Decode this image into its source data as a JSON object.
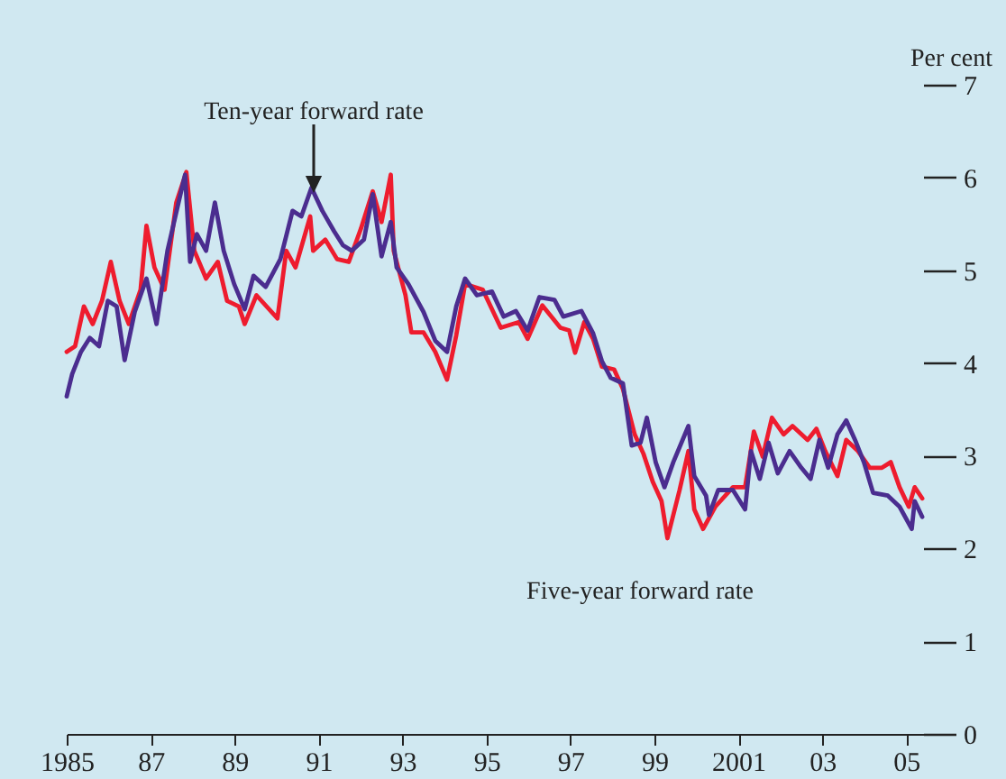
{
  "chart_data": {
    "type": "line",
    "ylabel": "Per cent",
    "xlim": [
      1985,
      2005.4
    ],
    "xticks": [
      1985,
      {
        "value": 1987,
        "label": "87"
      },
      {
        "value": 1989,
        "label": "89"
      },
      {
        "value": 1991,
        "label": "91"
      },
      {
        "value": 1993,
        "label": "93"
      },
      {
        "value": 1995,
        "label": "95"
      },
      {
        "value": 1997,
        "label": "97"
      },
      {
        "value": 1999,
        "label": "99"
      },
      2001,
      {
        "value": 2003,
        "label": "03"
      },
      {
        "value": 2005,
        "label": "05"
      }
    ],
    "ylim": [
      0,
      7
    ],
    "yticks": [
      0,
      1,
      2,
      3,
      4,
      5,
      6,
      7
    ],
    "grid": false,
    "legend": false,
    "annotations": [
      "Ten-year forward rate",
      "Five-year forward rate"
    ],
    "series": [
      {
        "color": "#ee1c2e",
        "x": [
          1985.0,
          1985.2,
          1985.41,
          1985.62,
          1985.84,
          1986.05,
          1986.26,
          1986.48,
          1986.76,
          1986.9,
          1987.09,
          1987.33,
          1987.61,
          1987.85,
          1988.04,
          1988.32,
          1988.6,
          1988.82,
          1989.1,
          1989.24,
          1989.52,
          1990.02,
          1990.23,
          1990.45,
          1990.8,
          1990.87,
          1991.16,
          1991.44,
          1991.72,
          1992.01,
          1992.29,
          1992.5,
          1992.72,
          1992.79,
          1993.07,
          1993.21,
          1993.5,
          1993.78,
          1994.06,
          1994.28,
          1994.49,
          1994.91,
          1995.34,
          1995.77,
          1995.98,
          1996.33,
          1996.76,
          1996.97,
          1997.11,
          1997.33,
          1997.54,
          1997.75,
          1998.04,
          1998.25,
          1998.53,
          1998.74,
          1998.96,
          1999.17,
          1999.31,
          1999.6,
          1999.81,
          1999.95,
          2000.16,
          2000.45,
          2000.87,
          2001.16,
          2001.37,
          2001.58,
          2001.8,
          2002.08,
          2002.29,
          2002.65,
          2002.86,
          2003.07,
          2003.36,
          2003.57,
          2003.85,
          2004.13,
          2004.42,
          2004.63,
          2004.84,
          2005.06,
          2005.2,
          2005.38
        ],
        "values": [
          4.12,
          4.18,
          4.61,
          4.42,
          4.67,
          5.09,
          4.67,
          4.42,
          4.79,
          5.48,
          5.03,
          4.79,
          5.73,
          6.06,
          5.21,
          4.91,
          5.09,
          4.67,
          4.61,
          4.42,
          4.73,
          4.48,
          5.21,
          5.03,
          5.58,
          5.21,
          5.33,
          5.12,
          5.09,
          5.45,
          5.85,
          5.52,
          6.03,
          5.21,
          4.73,
          4.33,
          4.33,
          4.12,
          3.82,
          4.3,
          4.85,
          4.79,
          4.38,
          4.44,
          4.26,
          4.62,
          4.38,
          4.35,
          4.11,
          4.44,
          4.26,
          3.96,
          3.93,
          3.72,
          3.23,
          3.02,
          2.72,
          2.51,
          2.11,
          2.63,
          3.05,
          2.42,
          2.21,
          2.45,
          2.66,
          2.66,
          3.26,
          2.99,
          3.41,
          3.23,
          3.32,
          3.17,
          3.29,
          3.05,
          2.78,
          3.17,
          3.05,
          2.87,
          2.87,
          2.93,
          2.66,
          2.45,
          2.66,
          2.54
        ]
      },
      {
        "color": "#4b2d8f",
        "x": [
          1985.0,
          1985.13,
          1985.34,
          1985.55,
          1985.77,
          1985.98,
          1986.19,
          1986.38,
          1986.62,
          1986.9,
          1987.14,
          1987.4,
          1987.68,
          1987.82,
          1987.94,
          1988.1,
          1988.32,
          1988.53,
          1988.74,
          1988.99,
          1989.24,
          1989.45,
          1989.74,
          1990.09,
          1990.38,
          1990.59,
          1990.83,
          1991.09,
          1991.37,
          1991.58,
          1991.79,
          1992.08,
          1992.29,
          1992.5,
          1992.72,
          1992.86,
          1993.14,
          1993.5,
          1993.78,
          1994.06,
          1994.28,
          1994.49,
          1994.77,
          1995.13,
          1995.41,
          1995.7,
          1995.98,
          1996.26,
          1996.62,
          1996.83,
          1997.26,
          1997.54,
          1997.75,
          1997.96,
          1998.25,
          1998.46,
          1998.67,
          1998.82,
          1999.03,
          1999.24,
          1999.45,
          1999.81,
          1999.95,
          2000.23,
          2000.3,
          2000.52,
          2000.87,
          2001.16,
          2001.3,
          2001.51,
          2001.72,
          2001.94,
          2002.22,
          2002.5,
          2002.72,
          2002.93,
          2003.14,
          2003.36,
          2003.57,
          2003.78,
          2003.99,
          2004.21,
          2004.56,
          2004.84,
          2005.13,
          2005.2,
          2005.38
        ],
        "values": [
          3.64,
          3.88,
          4.12,
          4.27,
          4.18,
          4.67,
          4.61,
          4.03,
          4.55,
          4.91,
          4.42,
          5.21,
          5.76,
          6.03,
          5.09,
          5.39,
          5.21,
          5.73,
          5.21,
          4.85,
          4.58,
          4.94,
          4.82,
          5.12,
          5.64,
          5.58,
          5.89,
          5.64,
          5.42,
          5.27,
          5.21,
          5.33,
          5.82,
          5.15,
          5.52,
          5.03,
          4.85,
          4.55,
          4.24,
          4.12,
          4.61,
          4.91,
          4.73,
          4.77,
          4.5,
          4.56,
          4.35,
          4.71,
          4.68,
          4.5,
          4.56,
          4.32,
          4.02,
          3.84,
          3.78,
          3.11,
          3.14,
          3.41,
          2.93,
          2.66,
          2.93,
          3.32,
          2.78,
          2.57,
          2.36,
          2.63,
          2.63,
          2.42,
          3.05,
          2.75,
          3.14,
          2.81,
          3.05,
          2.87,
          2.75,
          3.17,
          2.87,
          3.23,
          3.38,
          3.17,
          2.93,
          2.6,
          2.57,
          2.45,
          2.21,
          2.51,
          2.34
        ]
      }
    ]
  }
}
